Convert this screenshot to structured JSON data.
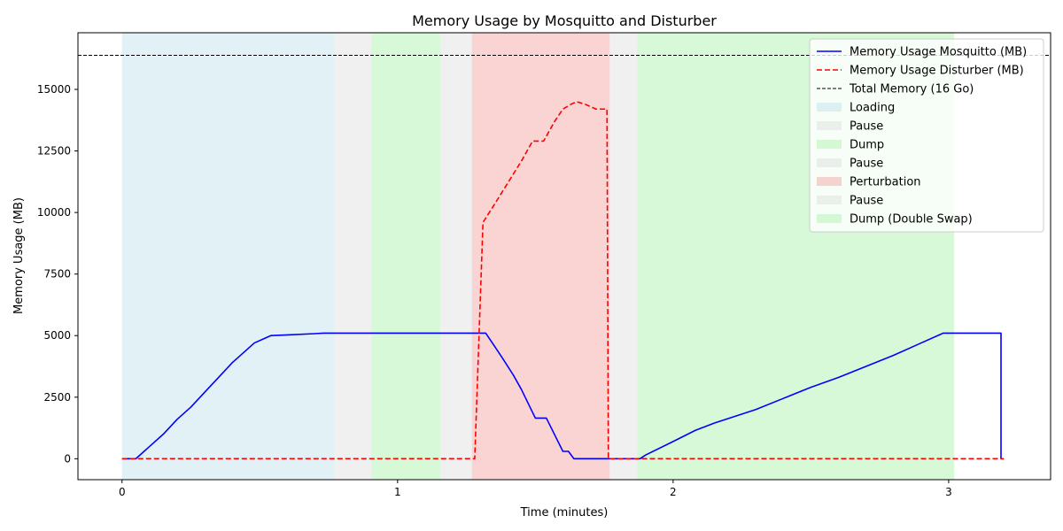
{
  "chart_data": {
    "type": "line",
    "title": "Memory Usage by Mosquitto and Disturber",
    "xlabel": "Time (minutes)",
    "ylabel": "Memory Usage (MB)",
    "xlim": [
      -0.16,
      3.37
    ],
    "ylim": [
      -850,
      17300
    ],
    "xticks": [
      0,
      1,
      2,
      3
    ],
    "xtick_labels": [
      "0",
      "1",
      "2",
      "3"
    ],
    "yticks": [
      0,
      2500,
      5000,
      7500,
      10000,
      12500,
      15000
    ],
    "ytick_labels": [
      "0",
      "2500",
      "5000",
      "7500",
      "10000",
      "12500",
      "15000"
    ],
    "grid": false,
    "legend_position": "top-right",
    "phases": [
      {
        "label": "Loading",
        "start": 0.0,
        "end": 0.77,
        "color": "#add8e6"
      },
      {
        "label": "Pause",
        "start": 0.77,
        "end": 0.905,
        "color": "#d3d3d3"
      },
      {
        "label": "Dump",
        "start": 0.905,
        "end": 1.155,
        "color": "#90ee90"
      },
      {
        "label": "Pause",
        "start": 1.155,
        "end": 1.27,
        "color": "#d3d3d3"
      },
      {
        "label": "Perturbation",
        "start": 1.27,
        "end": 1.77,
        "color": "#f08080"
      },
      {
        "label": "Pause",
        "start": 1.77,
        "end": 1.87,
        "color": "#d3d3d3"
      },
      {
        "label": "Dump (Double Swap)",
        "start": 1.87,
        "end": 3.02,
        "color": "#90ee90"
      }
    ],
    "series": [
      {
        "name": "Memory Usage Mosquitto (MB)",
        "color": "#0000ff",
        "dash": "solid",
        "points": [
          [
            0,
            0
          ],
          [
            0.05,
            0
          ],
          [
            0.1,
            500
          ],
          [
            0.15,
            1000
          ],
          [
            0.2,
            1600
          ],
          [
            0.25,
            2100
          ],
          [
            0.3,
            2700
          ],
          [
            0.35,
            3300
          ],
          [
            0.4,
            3900
          ],
          [
            0.45,
            4400
          ],
          [
            0.48,
            4700
          ],
          [
            0.52,
            4900
          ],
          [
            0.54,
            5000
          ],
          [
            0.6,
            5030
          ],
          [
            0.7,
            5080
          ],
          [
            0.73,
            5100
          ],
          [
            1.0,
            5100
          ],
          [
            1.3,
            5100
          ],
          [
            1.32,
            5100
          ],
          [
            1.35,
            4600
          ],
          [
            1.38,
            4100
          ],
          [
            1.42,
            3400
          ],
          [
            1.45,
            2800
          ],
          [
            1.5,
            1650
          ],
          [
            1.54,
            1650
          ],
          [
            1.6,
            300
          ],
          [
            1.62,
            300
          ],
          [
            1.64,
            0
          ],
          [
            1.87,
            0
          ],
          [
            1.88,
            0
          ],
          [
            1.9,
            150
          ],
          [
            2.0,
            700
          ],
          [
            2.08,
            1150
          ],
          [
            2.15,
            1450
          ],
          [
            2.3,
            2000
          ],
          [
            2.4,
            2450
          ],
          [
            2.5,
            2900
          ],
          [
            2.6,
            3300
          ],
          [
            2.7,
            3750
          ],
          [
            2.8,
            4200
          ],
          [
            2.9,
            4700
          ],
          [
            2.97,
            5050
          ],
          [
            2.98,
            5100
          ],
          [
            3.19,
            5100
          ],
          [
            3.19,
            0
          ],
          [
            3.2,
            0
          ]
        ]
      },
      {
        "name": "Memory Usage Disturber (MB)",
        "color": "#ff0000",
        "dash": "dashed",
        "points": [
          [
            0,
            0
          ],
          [
            1.28,
            0
          ],
          [
            1.31,
            9600
          ],
          [
            1.35,
            10300
          ],
          [
            1.4,
            11200
          ],
          [
            1.45,
            12100
          ],
          [
            1.49,
            12900
          ],
          [
            1.53,
            12900
          ],
          [
            1.57,
            13700
          ],
          [
            1.6,
            14200
          ],
          [
            1.63,
            14400
          ],
          [
            1.65,
            14500
          ],
          [
            1.68,
            14400
          ],
          [
            1.72,
            14200
          ],
          [
            1.76,
            14200
          ],
          [
            1.765,
            0
          ],
          [
            3.2,
            0
          ]
        ]
      },
      {
        "name": "Total Memory (16 Go)",
        "color": "#000000",
        "dash": "dashed-thin",
        "hline": 16384
      }
    ]
  }
}
